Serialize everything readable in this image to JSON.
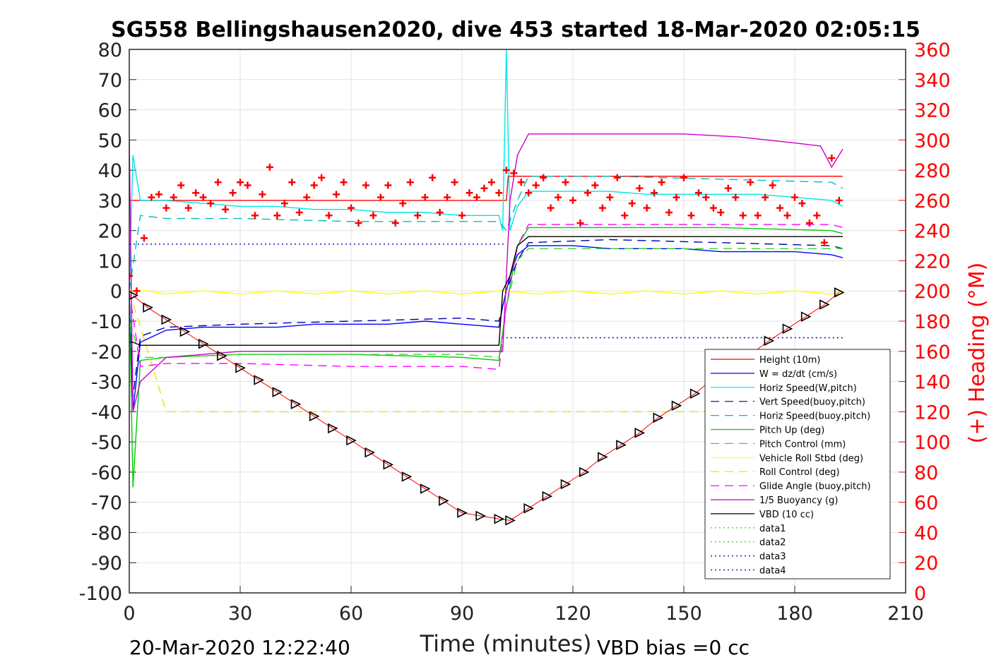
{
  "chart_data": {
    "type": "line",
    "title": "SG558 Bellingshausen2020, dive 453 started 18-Mar-2020 02:05:15",
    "xlabel": "Time (minutes)",
    "ylabel_right": "(+) Heading (°M)",
    "footer_left": "20-Mar-2020 12:22:40",
    "footer_right": "VBD bias =0 cc",
    "xlim": [
      0,
      210
    ],
    "ylim": [
      -100,
      80
    ],
    "ylim_right": [
      0,
      360
    ],
    "xticks": [
      0,
      30,
      60,
      90,
      120,
      150,
      180,
      210
    ],
    "yticks": [
      -100,
      -90,
      -80,
      -70,
      -60,
      -50,
      -40,
      -30,
      -20,
      -10,
      0,
      10,
      20,
      30,
      40,
      50,
      60,
      70,
      80
    ],
    "yticks_right": [
      0,
      20,
      40,
      60,
      80,
      100,
      120,
      140,
      160,
      180,
      200,
      220,
      240,
      260,
      280,
      300,
      320,
      340,
      360
    ],
    "grid": true,
    "legend_position": "bottom-right",
    "series": [
      {
        "name": "Height (10m)",
        "color": "#ff0000",
        "style": "solid",
        "x": [
          0,
          102,
          102.5,
          193
        ],
        "y": [
          30,
          30,
          38,
          38
        ]
      },
      {
        "name": "W = dz/dt (cm/s)",
        "color": "#0000ff",
        "style": "solid",
        "x": [
          0,
          1,
          3,
          10,
          20,
          30,
          40,
          50,
          60,
          70,
          80,
          90,
          100,
          101,
          103,
          105,
          108,
          120,
          130,
          140,
          150,
          160,
          170,
          180,
          190,
          193
        ],
        "y": [
          0,
          -40,
          -17,
          -13,
          -12,
          -12,
          -12,
          -11,
          -11,
          -11,
          -10,
          -11,
          -12,
          -5,
          5,
          12,
          15,
          15,
          14,
          14,
          14,
          13,
          13,
          13,
          12,
          11
        ]
      },
      {
        "name": "Horiz Speed(W,pitch)",
        "color": "#00e5e5",
        "style": "solid",
        "x": [
          0,
          1,
          3,
          10,
          20,
          30,
          40,
          50,
          60,
          70,
          80,
          90,
          100,
          101,
          102,
          103,
          105,
          108,
          120,
          130,
          140,
          150,
          160,
          170,
          180,
          190,
          193
        ],
        "y": [
          0,
          45,
          30,
          30,
          29,
          28,
          28,
          27,
          27,
          26,
          26,
          25,
          25,
          20,
          80,
          20,
          28,
          33,
          33,
          33,
          32,
          32,
          32,
          32,
          31,
          30,
          28
        ]
      },
      {
        "name": "Vert Speed(buoy,pitch)",
        "color": "#0000aa",
        "style": "dash",
        "x": [
          0,
          1,
          3,
          10,
          30,
          60,
          90,
          100,
          102,
          105,
          108,
          130,
          160,
          190,
          193
        ],
        "y": [
          0,
          -35,
          -15,
          -12,
          -11,
          -10,
          -9,
          -10,
          0,
          10,
          16,
          17,
          16,
          15,
          14
        ]
      },
      {
        "name": "Horiz Speed(buoy,pitch)",
        "color": "#00bcbc",
        "style": "dash",
        "x": [
          0,
          3,
          10,
          30,
          60,
          90,
          100,
          102,
          105,
          108,
          130,
          160,
          190,
          193
        ],
        "y": [
          0,
          25,
          24,
          24,
          23,
          23,
          23,
          20,
          30,
          38,
          38,
          37,
          36,
          34
        ]
      },
      {
        "name": "Pitch Up (deg)",
        "color": "#00cc00",
        "style": "solid",
        "x": [
          0,
          1,
          3,
          10,
          30,
          60,
          90,
          100,
          102,
          105,
          108,
          130,
          160,
          190,
          193
        ],
        "y": [
          0,
          -65,
          -23,
          -22,
          -21,
          -21,
          -22,
          -23,
          -5,
          15,
          21,
          21,
          21,
          20,
          19
        ]
      },
      {
        "name": "Pitch Control (mm)",
        "color": "#33dd33",
        "style": "dash",
        "x": [
          0,
          3,
          10,
          30,
          60,
          90,
          100,
          102,
          105,
          108,
          130,
          160,
          190,
          193
        ],
        "y": [
          -10,
          -22,
          -22,
          -21,
          -21,
          -21,
          -22,
          -5,
          10,
          14,
          14,
          14,
          14,
          14
        ]
      },
      {
        "name": "Vehicle Roll Stbd (deg)",
        "color": "#ffff00",
        "style": "solid",
        "x": [
          0,
          5,
          10,
          20,
          30,
          40,
          50,
          60,
          70,
          80,
          90,
          100,
          102,
          110,
          120,
          130,
          140,
          150,
          160,
          170,
          180,
          190,
          193
        ],
        "y": [
          0,
          0,
          -1,
          0,
          -1,
          0,
          -1,
          0,
          -1,
          0,
          -1,
          0,
          0,
          -1,
          0,
          -1,
          0,
          -1,
          0,
          -1,
          0,
          -1,
          0
        ]
      },
      {
        "name": "Roll Control (deg)",
        "color": "#e5e500",
        "style": "dash",
        "x": [
          0,
          10,
          30,
          60,
          90,
          100,
          110,
          130,
          160,
          190,
          193
        ],
        "y": [
          0,
          -40,
          -40,
          -40,
          -40,
          -40,
          -40,
          -40,
          -40,
          -40,
          -40
        ]
      },
      {
        "name": "Glide Angle (buoy,pitch)",
        "color": "#ff00ff",
        "style": "dash",
        "x": [
          0,
          3,
          10,
          30,
          60,
          90,
          100,
          102,
          105,
          108,
          130,
          160,
          190,
          193
        ],
        "y": [
          0,
          -25,
          -24,
          -24,
          -25,
          -25,
          -26,
          -5,
          15,
          22,
          22,
          22,
          22,
          21
        ]
      },
      {
        "name": "1/5 Buoyancy (g)",
        "color": "#cc00cc",
        "style": "solid",
        "x": [
          0,
          1,
          3,
          10,
          20,
          30,
          60,
          90,
          100,
          101,
          103,
          105,
          108,
          120,
          150,
          165,
          180,
          187,
          190,
          193
        ],
        "y": [
          50,
          -40,
          -30,
          -22,
          -21,
          -20,
          -20,
          -20,
          -20,
          -20,
          30,
          45,
          52,
          52,
          52,
          51,
          49,
          48,
          41,
          47
        ]
      },
      {
        "name": "VBD (10 cc)",
        "color": "#000000",
        "style": "solid",
        "x": [
          0,
          1,
          3,
          10,
          60,
          100,
          101,
          103,
          105,
          108,
          150,
          193
        ],
        "y": [
          -17,
          -17,
          -18,
          -18,
          -18,
          -18,
          0,
          5,
          15,
          18,
          18,
          18
        ]
      },
      {
        "name": "data1",
        "color": "#00dd00",
        "style": "dot",
        "x": [],
        "y": []
      },
      {
        "name": "data2",
        "color": "#00dd00",
        "style": "dot",
        "x": [],
        "y": []
      },
      {
        "name": "data3",
        "color": "#0000aa",
        "style": "dot",
        "x": [
          0,
          102
        ],
        "y": [
          15.5,
          15.5
        ]
      },
      {
        "name": "data4",
        "color": "#0000aa",
        "style": "dot",
        "x": [
          102,
          193
        ],
        "y": [
          -15.5,
          -15.5
        ]
      }
    ],
    "depth_markers": {
      "color": "#000000",
      "x": [
        1,
        5,
        10,
        15,
        20,
        25,
        30,
        35,
        40,
        45,
        50,
        55,
        60,
        65,
        70,
        75,
        80,
        85,
        90,
        95,
        100,
        103,
        108,
        113,
        118,
        123,
        128,
        133,
        138,
        143,
        148,
        153,
        158,
        163,
        168,
        173,
        178,
        183,
        188,
        192
      ],
      "y": [
        -1.5,
        -5.5,
        -9.5,
        -13.5,
        -17.5,
        -21.5,
        -25.5,
        -29.5,
        -33.5,
        -37.5,
        -41.5,
        -45.5,
        -49.5,
        -53.5,
        -57.5,
        -61.5,
        -65.5,
        -69.5,
        -73.5,
        -74.5,
        -75.5,
        -76,
        -72,
        -68,
        -64,
        -60,
        -55,
        -51,
        -47,
        -42,
        -38,
        -34,
        -29,
        -25,
        -21,
        -16.5,
        -12.5,
        -8.5,
        -4.5,
        -0.5
      ]
    },
    "heading": {
      "name": "(+) Heading (°M)",
      "color": "#ff0000",
      "marker": "+",
      "x": [
        0,
        2,
        4,
        6,
        8,
        10,
        12,
        14,
        16,
        18,
        20,
        22,
        24,
        26,
        28,
        30,
        32,
        34,
        36,
        38,
        40,
        42,
        44,
        46,
        48,
        50,
        52,
        54,
        56,
        58,
        60,
        62,
        64,
        66,
        68,
        70,
        72,
        74,
        76,
        78,
        80,
        82,
        84,
        86,
        88,
        90,
        92,
        94,
        96,
        98,
        100,
        102,
        104,
        106,
        108,
        110,
        112,
        114,
        116,
        118,
        120,
        122,
        124,
        126,
        128,
        130,
        132,
        134,
        136,
        138,
        140,
        142,
        144,
        146,
        148,
        150,
        152,
        154,
        156,
        158,
        160,
        162,
        164,
        166,
        168,
        170,
        172,
        174,
        176,
        178,
        180,
        182,
        184,
        186,
        188,
        190,
        192
      ],
      "y": [
        210,
        200,
        235,
        262,
        264,
        255,
        262,
        270,
        255,
        265,
        262,
        258,
        272,
        254,
        265,
        272,
        270,
        250,
        264,
        282,
        250,
        258,
        272,
        252,
        262,
        270,
        275,
        250,
        264,
        272,
        255,
        245,
        270,
        250,
        262,
        270,
        245,
        258,
        272,
        250,
        262,
        275,
        252,
        262,
        272,
        250,
        265,
        262,
        268,
        272,
        265,
        280,
        278,
        272,
        265,
        270,
        275,
        255,
        262,
        272,
        260,
        245,
        265,
        270,
        255,
        262,
        275,
        250,
        258,
        268,
        255,
        265,
        272,
        252,
        262,
        275,
        250,
        265,
        262,
        255,
        252,
        268,
        262,
        250,
        272,
        250,
        262,
        270,
        255,
        250,
        262,
        258,
        245,
        250,
        232,
        288,
        260
      ]
    }
  }
}
